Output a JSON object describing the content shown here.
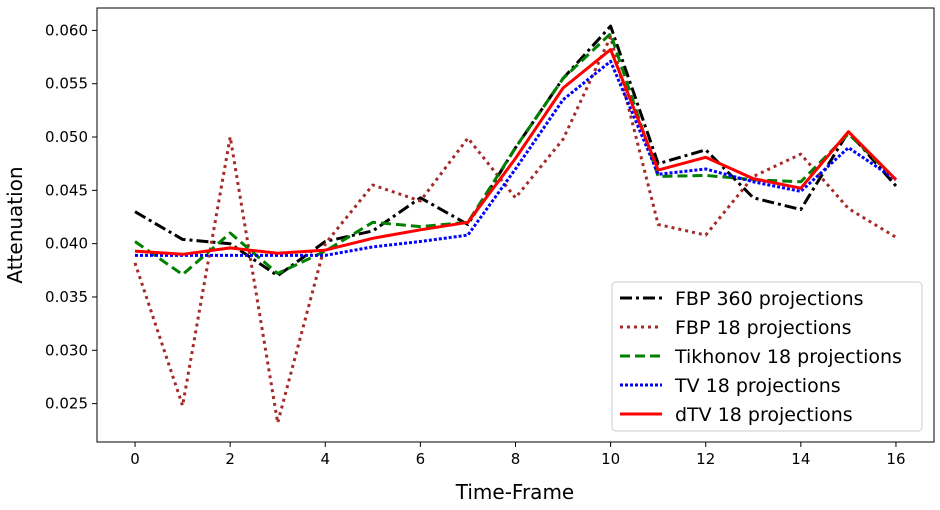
{
  "chart_data": {
    "type": "line",
    "xlabel": "Time-Frame",
    "ylabel": "Attenuation",
    "xlim": [
      -0.8,
      16.8
    ],
    "ylim": [
      0.0214,
      0.0621
    ],
    "xticks": [
      0,
      2,
      4,
      6,
      8,
      10,
      12,
      14,
      16
    ],
    "yticks": [
      0.025,
      0.03,
      0.035,
      0.04,
      0.045,
      0.05,
      0.055,
      0.06
    ],
    "ytick_labels": [
      "0.025",
      "0.030",
      "0.035",
      "0.040",
      "0.045",
      "0.050",
      "0.055",
      "0.060"
    ],
    "grid": false,
    "legend_position": "lower-right",
    "x": [
      0,
      1,
      2,
      3,
      4,
      5,
      6,
      7,
      8,
      9,
      10,
      11,
      12,
      13,
      14,
      15,
      16
    ],
    "series": [
      {
        "name": "FBP 360 projections",
        "color": "#000000",
        "dash": "dashdot",
        "values": [
          0.043,
          0.0404,
          0.04,
          0.037,
          0.0402,
          0.0412,
          0.0443,
          0.0418,
          0.049,
          0.0555,
          0.0604,
          0.0475,
          0.0488,
          0.0443,
          0.0432,
          0.0505,
          0.0454
        ]
      },
      {
        "name": "FBP 18 projections",
        "color": "#a52a2a",
        "dash": "dotted",
        "values": [
          0.0382,
          0.0248,
          0.05,
          0.0232,
          0.04,
          0.0455,
          0.044,
          0.0499,
          0.0443,
          0.0498,
          0.0594,
          0.0418,
          0.0408,
          0.0463,
          0.0484,
          0.0433,
          0.0406
        ]
      },
      {
        "name": "Tikhonov 18 projections",
        "color": "#008000",
        "dash": "dashed",
        "values": [
          0.0402,
          0.0371,
          0.041,
          0.0372,
          0.0393,
          0.042,
          0.0416,
          0.042,
          0.049,
          0.0555,
          0.0597,
          0.0463,
          0.0464,
          0.046,
          0.0458,
          0.0503,
          0.046
        ]
      },
      {
        "name": "TV 18 projections",
        "color": "#0000ff",
        "dash": "dense-dotted",
        "values": [
          0.0389,
          0.0389,
          0.0389,
          0.0389,
          0.0389,
          0.0397,
          0.0402,
          0.0408,
          0.047,
          0.0535,
          0.0571,
          0.0465,
          0.047,
          0.0458,
          0.0449,
          0.049,
          0.046
        ]
      },
      {
        "name": "dTV 18 projections",
        "color": "#ff0000",
        "dash": "solid",
        "values": [
          0.0393,
          0.039,
          0.0396,
          0.0391,
          0.0394,
          0.0405,
          0.0413,
          0.042,
          0.048,
          0.0546,
          0.0582,
          0.0469,
          0.0481,
          0.0461,
          0.0452,
          0.0505,
          0.046
        ]
      }
    ]
  }
}
